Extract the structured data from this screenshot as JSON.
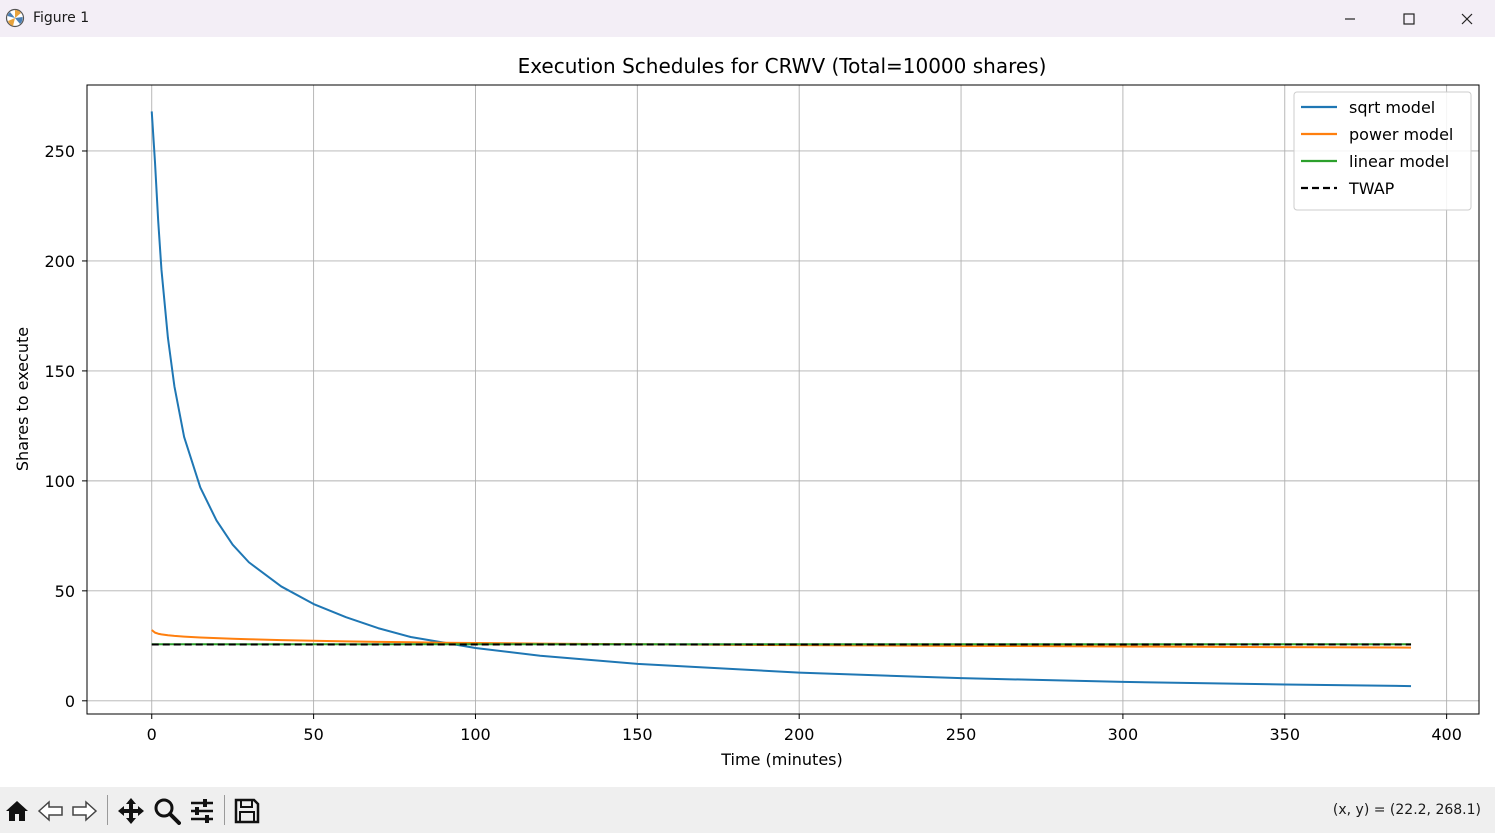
{
  "window": {
    "title": "Figure 1",
    "buttons": {
      "minimize": "minimize-icon",
      "maximize": "maximize-icon",
      "close": "close-icon"
    }
  },
  "chart_data": {
    "type": "line",
    "title": "Execution Schedules for CRWV (Total=10000 shares)",
    "xlabel": "Time (minutes)",
    "ylabel": "Shares to execute",
    "xlim": [
      -20,
      410
    ],
    "ylim": [
      -6,
      280
    ],
    "xticks": [
      0,
      50,
      100,
      150,
      200,
      250,
      300,
      350,
      400
    ],
    "yticks": [
      0,
      50,
      100,
      150,
      200,
      250
    ],
    "grid": true,
    "legend_position": "top-right",
    "x": [
      0,
      1,
      2,
      3,
      5,
      7,
      10,
      15,
      20,
      25,
      30,
      40,
      50,
      60,
      70,
      80,
      90,
      100,
      120,
      150,
      200,
      250,
      300,
      350,
      389
    ],
    "series": [
      {
        "name": "sqrt model",
        "color": "#1f77b4",
        "style": "solid",
        "values": [
          268,
          245,
          218,
          196,
          165,
          143,
          120,
          97,
          82,
          71,
          63,
          52,
          44,
          38,
          33,
          29,
          26.5,
          24,
          20.5,
          16.8,
          12.8,
          10.3,
          8.6,
          7.4,
          6.7
        ]
      },
      {
        "name": "power model",
        "color": "#ff7f0e",
        "style": "solid",
        "values": [
          32.2,
          31.0,
          30.5,
          30.2,
          29.8,
          29.5,
          29.2,
          28.8,
          28.5,
          28.2,
          28.0,
          27.6,
          27.3,
          27.0,
          26.8,
          26.6,
          26.4,
          26.3,
          26.0,
          25.7,
          25.3,
          25.0,
          24.7,
          24.4,
          24.2
        ]
      },
      {
        "name": "linear model",
        "color": "#2ca02c",
        "style": "solid",
        "values": [
          25.7,
          25.7,
          25.7,
          25.7,
          25.7,
          25.7,
          25.7,
          25.7,
          25.7,
          25.7,
          25.7,
          25.7,
          25.7,
          25.7,
          25.7,
          25.7,
          25.7,
          25.7,
          25.7,
          25.7,
          25.7,
          25.7,
          25.7,
          25.7,
          25.7
        ]
      },
      {
        "name": "TWAP",
        "color": "#000000",
        "style": "dashed",
        "values": [
          25.6,
          25.6,
          25.6,
          25.6,
          25.6,
          25.6,
          25.6,
          25.6,
          25.6,
          25.6,
          25.6,
          25.6,
          25.6,
          25.6,
          25.6,
          25.6,
          25.6,
          25.6,
          25.6,
          25.6,
          25.6,
          25.6,
          25.6,
          25.6,
          25.6
        ]
      }
    ]
  },
  "toolbar": {
    "buttons": [
      "home-icon",
      "back-icon",
      "forward-icon",
      "pan-icon",
      "zoom-icon",
      "configure-subplots-icon",
      "save-icon"
    ],
    "coords_text": "(x, y) = (22.2, 268.1)"
  }
}
